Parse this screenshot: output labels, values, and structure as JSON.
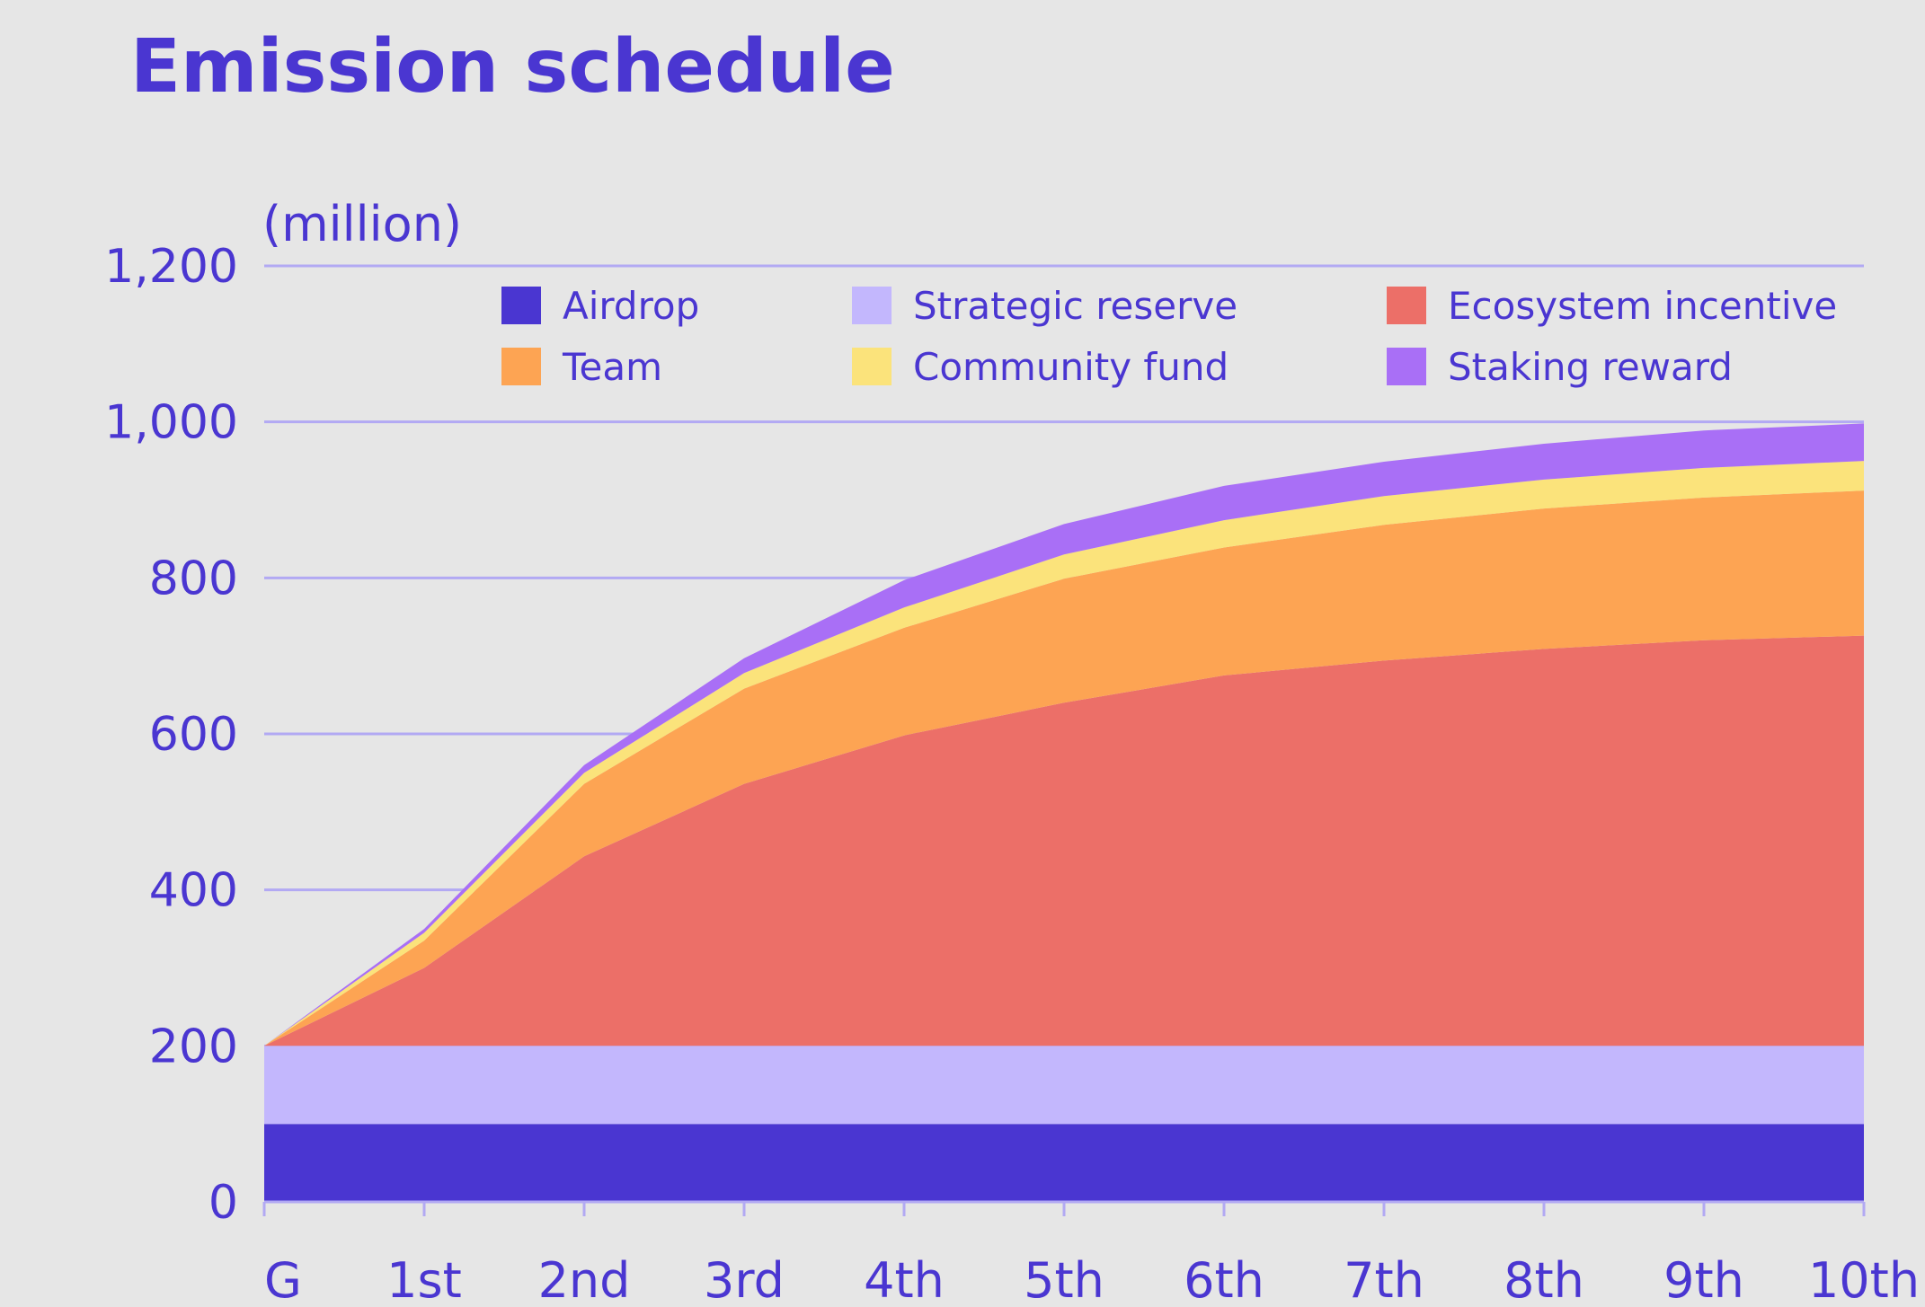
{
  "chart_data": {
    "type": "area",
    "stacked": true,
    "title": "Emission schedule",
    "ylabel": "(million)",
    "xlabel": "",
    "ylim": [
      0,
      1200
    ],
    "yticks": [
      0,
      200,
      400,
      600,
      800,
      1000,
      1200
    ],
    "ytick_labels": [
      "0",
      "200",
      "400",
      "600",
      "800",
      "1,000",
      "1,200"
    ],
    "categories": [
      "G",
      "1st",
      "2nd",
      "3rd",
      "4th",
      "5th",
      "6th",
      "7th",
      "8th",
      "9th",
      "10th"
    ],
    "grid": true,
    "legend_position": "top",
    "series": [
      {
        "name": "Airdrop",
        "color": "#4a36d1",
        "values": [
          100,
          100,
          100,
          100,
          100,
          100,
          100,
          100,
          100,
          100,
          100
        ]
      },
      {
        "name": "Strategic reserve",
        "color": "#c3b7fd",
        "values": [
          100,
          100,
          100,
          100,
          100,
          100,
          100,
          100,
          100,
          100,
          100
        ]
      },
      {
        "name": "Ecosystem incentive",
        "color": "#ec6f68",
        "values": [
          0,
          100,
          243,
          336,
          398,
          440,
          475,
          494,
          509,
          520,
          526
        ]
      },
      {
        "name": "Team",
        "color": "#fda453",
        "values": [
          0,
          35,
          93,
          122,
          138,
          159,
          164,
          174,
          180,
          183,
          186
        ]
      },
      {
        "name": "Community fund",
        "color": "#fbe37b",
        "values": [
          0,
          10,
          14,
          20,
          26,
          31,
          35,
          37,
          37,
          38,
          38
        ]
      },
      {
        "name": "Staking reward",
        "color": "#a96ff6",
        "values": [
          0,
          5,
          10,
          19,
          35,
          39,
          44,
          44,
          46,
          48,
          48
        ]
      }
    ],
    "legend_order": [
      "Airdrop",
      "Strategic reserve",
      "Ecosystem incentive",
      "Team",
      "Community fund",
      "Staking reward"
    ]
  }
}
